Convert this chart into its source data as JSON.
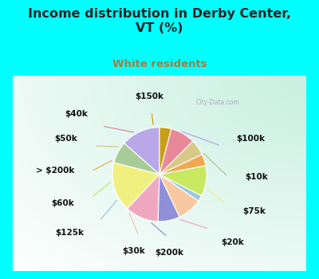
{
  "title": "Income distribution in Derby Center,\nVT (%)",
  "subtitle": "White residents",
  "title_color": "#222222",
  "subtitle_color": "#b07838",
  "bg_cyan": "#00ffff",
  "labels": [
    "$100k",
    "$10k",
    "$75k",
    "$20k",
    "$200k",
    "$30k",
    "$125k",
    "$60k",
    "> $200k",
    "$50k",
    "$40k",
    "$150k"
  ],
  "values": [
    13.5,
    7.5,
    17.0,
    11.5,
    7.5,
    8.5,
    2.0,
    10.5,
    4.0,
    5.5,
    8.5,
    4.0
  ],
  "colors": [
    "#b8a8e8",
    "#a8cc98",
    "#f0f080",
    "#f0a8c0",
    "#9090d8",
    "#f8c8a0",
    "#98c8e0",
    "#c8e860",
    "#f0a850",
    "#d8c888",
    "#e88898",
    "#c8a018"
  ],
  "startangle": 90,
  "lfs": 7.5,
  "watermark": "City-Data.com"
}
